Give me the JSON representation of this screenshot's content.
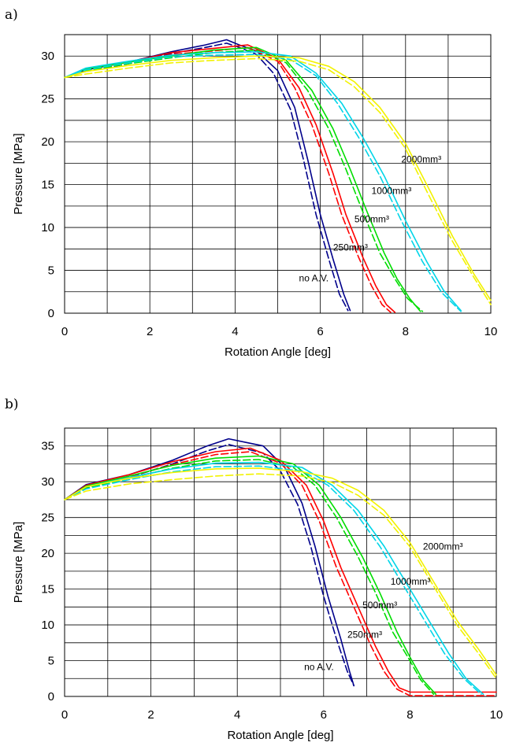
{
  "chart_data": [
    {
      "panel_label": "a)",
      "type": "line",
      "xlabel": "Rotation Angle [deg]",
      "ylabel": "Pressure [MPa]",
      "xlim": [
        0,
        10
      ],
      "ylim": [
        0,
        32.5
      ],
      "xticks": [
        0,
        2,
        4,
        6,
        8,
        10
      ],
      "yticks": [
        0,
        5,
        10,
        15,
        20,
        25,
        30
      ],
      "grid": true,
      "annotations": [
        {
          "text": "no A.V.",
          "x": 5.5,
          "y": 3.7
        },
        {
          "text": "250mm³",
          "x": 6.3,
          "y": 7.3
        },
        {
          "text": "500mm³",
          "x": 6.8,
          "y": 10.6
        },
        {
          "text": "1000mm³",
          "x": 7.2,
          "y": 13.9
        },
        {
          "text": "2000mm³",
          "x": 7.9,
          "y": 17.6
        }
      ],
      "series": [
        {
          "color": "#00008b",
          "dash": false,
          "x": [
            0,
            0.5,
            1.5,
            2.5,
            3.3,
            3.8,
            4.1,
            4.5,
            5.0,
            5.4,
            5.7,
            6.0,
            6.3,
            6.55,
            6.7
          ],
          "y": [
            27.5,
            28.4,
            29.3,
            30.5,
            31.3,
            31.9,
            31.3,
            30.6,
            28.3,
            24.0,
            18.0,
            11.5,
            6.3,
            2.2,
            0.3
          ]
        },
        {
          "color": "#00008b",
          "dash": true,
          "x": [
            0,
            0.5,
            1.5,
            2.5,
            3.3,
            3.8,
            4.1,
            4.5,
            4.9,
            5.3,
            5.6,
            5.9,
            6.2,
            6.45,
            6.65
          ],
          "y": [
            27.5,
            28.2,
            29.1,
            30.3,
            31.0,
            31.5,
            31.0,
            30.2,
            28.0,
            23.8,
            18.0,
            11.5,
            6.3,
            2.2,
            0.3
          ]
        },
        {
          "color": "#ff0000",
          "dash": false,
          "x": [
            0,
            0.5,
            1.5,
            2.5,
            3.5,
            4.3,
            5.0,
            5.5,
            5.9,
            6.3,
            6.6,
            7.0,
            7.3,
            7.55,
            7.75
          ],
          "y": [
            27.5,
            28.5,
            29.3,
            30.4,
            30.9,
            31.3,
            29.7,
            26.3,
            22.0,
            16.3,
            11.5,
            6.5,
            3.2,
            1.0,
            0.1
          ]
        },
        {
          "color": "#ff0000",
          "dash": true,
          "x": [
            0,
            0.5,
            1.5,
            2.5,
            3.5,
            4.3,
            5.0,
            5.4,
            5.8,
            6.2,
            6.5,
            6.9,
            7.2,
            7.45,
            7.65
          ],
          "y": [
            27.5,
            28.3,
            29.1,
            30.2,
            30.6,
            31.0,
            29.4,
            26.3,
            22.0,
            16.3,
            11.5,
            6.5,
            3.2,
            1.0,
            0.1
          ]
        },
        {
          "color": "#00dd00",
          "dash": false,
          "x": [
            0,
            0.5,
            1.5,
            2.5,
            3.5,
            4.5,
            5.2,
            5.8,
            6.3,
            6.7,
            7.1,
            7.5,
            7.8,
            8.1,
            8.35
          ],
          "y": [
            27.5,
            28.5,
            29.3,
            30.0,
            30.7,
            31.0,
            29.5,
            26.0,
            21.5,
            16.8,
            11.8,
            7.0,
            4.0,
            1.7,
            0.2
          ]
        },
        {
          "color": "#00dd00",
          "dash": true,
          "x": [
            0,
            0.5,
            1.5,
            2.5,
            3.5,
            4.5,
            5.2,
            5.7,
            6.2,
            6.6,
            7.0,
            7.4,
            7.75,
            8.05,
            8.4
          ],
          "y": [
            27.5,
            28.3,
            29.1,
            29.8,
            30.4,
            30.7,
            29.2,
            26.0,
            21.5,
            16.8,
            11.8,
            7.0,
            4.0,
            1.7,
            0.2
          ]
        },
        {
          "color": "#00d5e8",
          "dash": false,
          "x": [
            0,
            0.5,
            1.5,
            2.5,
            3.5,
            4.5,
            5.3,
            5.9,
            6.5,
            7.0,
            7.5,
            8.0,
            8.5,
            8.9,
            9.3
          ],
          "y": [
            27.5,
            28.6,
            29.4,
            30.1,
            30.4,
            30.5,
            30.0,
            28.0,
            24.5,
            20.5,
            16.0,
            10.8,
            6.0,
            2.6,
            0.3
          ]
        },
        {
          "color": "#00d5e8",
          "dash": true,
          "x": [
            0,
            0.5,
            1.5,
            2.5,
            3.5,
            4.5,
            5.3,
            5.9,
            6.4,
            6.9,
            7.4,
            7.9,
            8.4,
            8.85,
            9.3
          ],
          "y": [
            27.5,
            28.4,
            29.2,
            29.9,
            30.1,
            30.2,
            29.6,
            27.7,
            24.5,
            20.5,
            16.0,
            10.8,
            6.0,
            2.4,
            0.2
          ]
        },
        {
          "color": "#f2f200",
          "dash": false,
          "x": [
            0,
            0.5,
            1.5,
            2.5,
            3.5,
            4.5,
            5.5,
            6.2,
            6.8,
            7.4,
            8.0,
            8.6,
            9.1,
            9.6,
            10.0
          ],
          "y": [
            27.5,
            28.2,
            28.9,
            29.5,
            29.8,
            30.0,
            29.8,
            28.8,
            27.0,
            24.0,
            19.8,
            14.0,
            9.0,
            4.6,
            1.5
          ]
        },
        {
          "color": "#f2f200",
          "dash": true,
          "x": [
            0,
            0.5,
            1.5,
            2.5,
            3.5,
            4.5,
            5.5,
            6.2,
            6.8,
            7.4,
            8.0,
            8.6,
            9.1,
            9.6,
            10.0
          ],
          "y": [
            27.5,
            27.9,
            28.6,
            29.2,
            29.5,
            29.7,
            29.4,
            28.4,
            26.4,
            23.4,
            19.2,
            13.2,
            8.4,
            4.2,
            1.0
          ]
        }
      ]
    },
    {
      "panel_label": "b)",
      "type": "line",
      "xlabel": "Rotation Angle [deg]",
      "ylabel": "Pressure [MPa]",
      "xlim": [
        0,
        10
      ],
      "ylim": [
        0,
        37.5
      ],
      "xticks": [
        0,
        2,
        4,
        6,
        8,
        10
      ],
      "yticks": [
        0,
        5,
        10,
        15,
        20,
        25,
        30,
        35
      ],
      "grid": true,
      "annotations": [
        {
          "text": "no A.V.",
          "x": 5.55,
          "y": 3.7
        },
        {
          "text": "250mm³",
          "x": 6.55,
          "y": 8.2
        },
        {
          "text": "500mm³",
          "x": 6.9,
          "y": 12.3
        },
        {
          "text": "1000mm³",
          "x": 7.55,
          "y": 15.6
        },
        {
          "text": "2000mm³",
          "x": 8.3,
          "y": 20.5
        }
      ],
      "series": [
        {
          "color": "#00008b",
          "dash": false,
          "x": [
            0,
            0.5,
            1.5,
            2.5,
            3.3,
            3.8,
            4.2,
            4.6,
            5.1,
            5.5,
            5.8,
            6.1,
            6.4,
            6.6,
            6.7
          ],
          "y": [
            27.5,
            29.6,
            31.0,
            33.0,
            35.0,
            36.0,
            35.5,
            35.0,
            32.0,
            27.0,
            21.0,
            14.0,
            8.0,
            3.5,
            1.5
          ]
        },
        {
          "color": "#00008b",
          "dash": true,
          "x": [
            0,
            0.5,
            1.5,
            2.5,
            3.3,
            3.8,
            4.2,
            4.6,
            5.0,
            5.4,
            5.7,
            6.0,
            6.3,
            6.55,
            6.7
          ],
          "y": [
            27.5,
            29.3,
            30.6,
            32.5,
            34.3,
            35.2,
            34.6,
            34.0,
            31.5,
            26.8,
            21.0,
            14.0,
            8.0,
            3.5,
            1.5
          ]
        },
        {
          "color": "#ff0000",
          "dash": false,
          "x": [
            0,
            0.5,
            1.5,
            2.5,
            3.5,
            4.3,
            5.0,
            5.6,
            6.0,
            6.4,
            6.8,
            7.2,
            7.5,
            7.75,
            8.0,
            10.0
          ],
          "y": [
            27.5,
            29.5,
            31.0,
            32.8,
            34.2,
            34.7,
            33.0,
            29.5,
            24.5,
            18.0,
            12.5,
            7.0,
            3.5,
            1.2,
            0.6,
            0.6
          ]
        },
        {
          "color": "#ff0000",
          "dash": true,
          "x": [
            0,
            0.5,
            1.5,
            2.5,
            3.5,
            4.3,
            5.0,
            5.5,
            5.9,
            6.3,
            6.7,
            7.1,
            7.4,
            7.7,
            8.0,
            10.0
          ],
          "y": [
            27.5,
            29.2,
            30.7,
            32.4,
            33.8,
            34.2,
            32.6,
            29.5,
            24.5,
            18.0,
            12.5,
            7.0,
            3.5,
            1.0,
            0.1,
            0.1
          ]
        },
        {
          "color": "#00dd00",
          "dash": false,
          "x": [
            0,
            0.5,
            1.5,
            2.5,
            3.5,
            4.5,
            5.3,
            5.9,
            6.4,
            6.9,
            7.3,
            7.7,
            8.0,
            8.3,
            8.6
          ],
          "y": [
            27.5,
            29.4,
            30.8,
            32.3,
            33.3,
            33.6,
            32.5,
            29.5,
            25.0,
            19.5,
            14.5,
            9.0,
            5.5,
            2.3,
            0.3
          ]
        },
        {
          "color": "#00dd00",
          "dash": true,
          "x": [
            0,
            0.5,
            1.5,
            2.5,
            3.5,
            4.5,
            5.3,
            5.8,
            6.3,
            6.8,
            7.2,
            7.6,
            7.95,
            8.25,
            8.55
          ],
          "y": [
            27.5,
            29.1,
            30.5,
            31.9,
            32.9,
            33.1,
            32.0,
            29.5,
            25.0,
            19.5,
            14.5,
            9.0,
            5.5,
            2.3,
            0.3
          ]
        },
        {
          "color": "#00d5e8",
          "dash": false,
          "x": [
            0,
            0.5,
            1.5,
            2.5,
            3.5,
            4.5,
            5.5,
            6.2,
            6.8,
            7.4,
            7.9,
            8.4,
            8.9,
            9.3,
            9.7
          ],
          "y": [
            27.5,
            29.3,
            30.6,
            31.8,
            32.6,
            32.7,
            32.0,
            29.5,
            26.0,
            21.0,
            16.0,
            11.0,
            6.0,
            2.5,
            0.3
          ]
        },
        {
          "color": "#00d5e8",
          "dash": true,
          "x": [
            0,
            0.5,
            1.5,
            2.5,
            3.5,
            4.5,
            5.5,
            6.1,
            6.7,
            7.3,
            7.8,
            8.3,
            8.8,
            9.25,
            9.65
          ],
          "y": [
            27.5,
            29.0,
            30.3,
            31.4,
            32.1,
            32.2,
            31.5,
            29.5,
            26.0,
            21.0,
            16.0,
            11.0,
            6.0,
            2.5,
            0.3
          ]
        },
        {
          "color": "#f2f200",
          "dash": false,
          "x": [
            0,
            0.5,
            1.5,
            2.5,
            3.5,
            4.5,
            5.5,
            6.2,
            6.8,
            7.4,
            8.0,
            8.6,
            9.1,
            9.6,
            10.0
          ],
          "y": [
            27.5,
            29.3,
            30.5,
            31.3,
            31.8,
            31.9,
            31.4,
            30.5,
            28.8,
            26.0,
            21.5,
            15.5,
            10.5,
            6.5,
            3.0
          ]
        },
        {
          "color": "#f2f200",
          "dash": true,
          "x": [
            0,
            0.5,
            1.5,
            2.5,
            3.5,
            4.5,
            5.5,
            6.2,
            6.8,
            7.4,
            8.0,
            8.6,
            9.1,
            9.6,
            10.0
          ],
          "y": [
            27.5,
            28.7,
            29.7,
            30.3,
            30.8,
            31.1,
            30.8,
            29.9,
            28.1,
            25.3,
            20.9,
            14.9,
            9.9,
            5.9,
            2.5
          ]
        }
      ]
    }
  ]
}
